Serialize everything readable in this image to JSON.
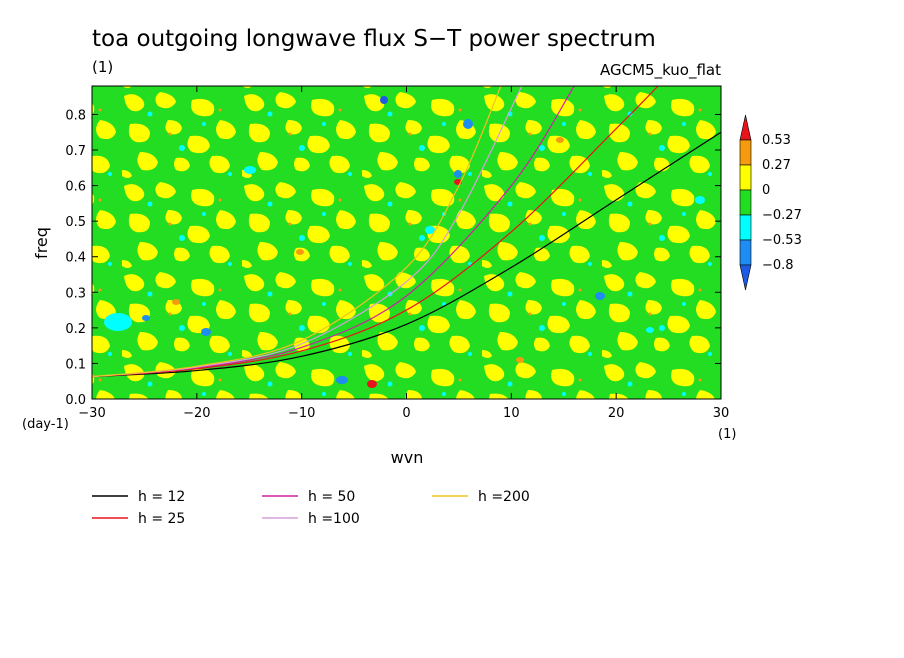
{
  "chart_data": {
    "type": "heatmap",
    "title": "toa outgoing longwave flux S−T power spectrum",
    "subtitle_left": "(1)",
    "subtitle_right": "AGCM5_kuo_flat",
    "xlabel": "wvn",
    "ylabel": "freq",
    "x_unit": "(1)",
    "y_unit": "(day-1)",
    "xlim": [
      -30,
      30
    ],
    "ylim": [
      0,
      0.88
    ],
    "x_ticks": [
      "−30",
      "−20",
      "−10",
      "0",
      "10",
      "20",
      "30"
    ],
    "x_tick_values": [
      -30,
      -20,
      -10,
      0,
      10,
      20,
      30
    ],
    "y_ticks": [
      "0.0",
      "0.1",
      "0.2",
      "0.3",
      "0.4",
      "0.5",
      "0.6",
      "0.7",
      "0.8"
    ],
    "y_tick_values": [
      0,
      0.1,
      0.2,
      0.3,
      0.4,
      0.5,
      0.6,
      0.7,
      0.8
    ],
    "colorbar": {
      "levels": [
        "0.53",
        "0.27",
        "0",
        "−0.27",
        "−0.53",
        "−0.8"
      ],
      "colors": [
        "#e8141c",
        "#f59b0f",
        "#ffff00",
        "#22dd22",
        "#00ffff",
        "#1e8cf0",
        "#1e5ae6"
      ]
    },
    "series": [
      {
        "name": "h = 12",
        "color": "#000000",
        "x": [
          -30,
          -20,
          -10,
          0,
          10,
          20,
          30
        ],
        "y": [
          0.063,
          0.08,
          0.12,
          0.21,
          0.37,
          0.56,
          0.75
        ]
      },
      {
        "name": "h = 25",
        "color": "#e8141c",
        "x": [
          -30,
          -20,
          -10,
          0,
          10,
          20,
          24
        ],
        "y": [
          0.063,
          0.085,
          0.135,
          0.25,
          0.47,
          0.76,
          0.88
        ]
      },
      {
        "name": "h = 50",
        "color": "#d21ea5",
        "x": [
          -30,
          -20,
          -10,
          0,
          10,
          16
        ],
        "y": [
          0.063,
          0.088,
          0.145,
          0.29,
          0.6,
          0.88
        ]
      },
      {
        "name": "h =100",
        "color": "#d7a0dc",
        "x": [
          -30,
          -20,
          -10,
          0,
          5,
          11
        ],
        "y": [
          0.063,
          0.09,
          0.155,
          0.33,
          0.52,
          0.88
        ]
      },
      {
        "name": "h =200",
        "color": "#f0c31e",
        "x": [
          -30,
          -20,
          -10,
          0,
          5,
          9
        ],
        "y": [
          0.063,
          0.092,
          0.165,
          0.37,
          0.6,
          0.88
        ]
      }
    ]
  }
}
